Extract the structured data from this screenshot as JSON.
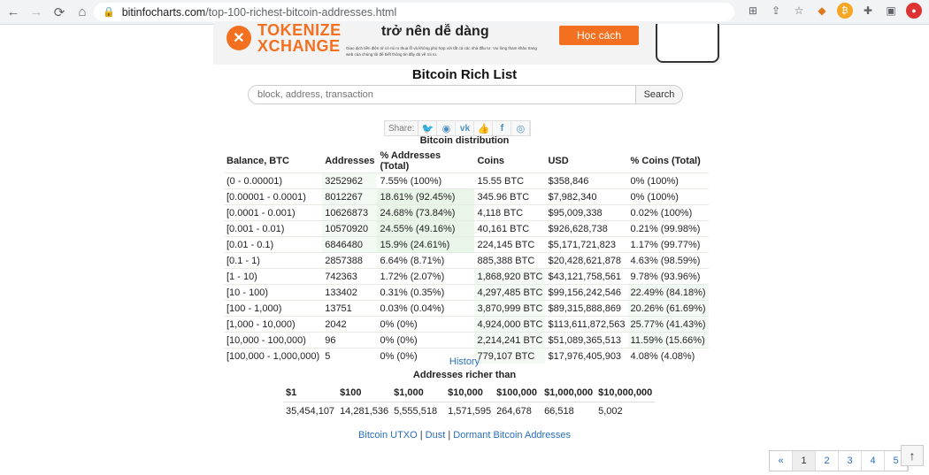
{
  "browser": {
    "url_host": "bitinfocharts.com",
    "url_path": "/top-100-richest-bitcoin-addresses.html"
  },
  "banner": {
    "logo_line1": "TOKENIZE",
    "logo_line2": "XCHANGE",
    "headline": "trở nên dễ dàng",
    "small_text": "Giao dịch tiền điện tử có rủi ro thua lỗ và không phù hợp với tất cả các nhà đầu tư. Vui lòng tham khảo trang web của chúng tôi để biết thông tin đầy đủ về rủi ro.",
    "cta": "Học cách"
  },
  "page_title": "Bitcoin Rich List",
  "search": {
    "placeholder": "block, address, transaction",
    "button": "Search"
  },
  "share": {
    "label": "Share:"
  },
  "distribution": {
    "title": "Bitcoin distribution",
    "headers": [
      "Balance, BTC",
      "Addresses",
      "% Addresses (Total)",
      "Coins",
      "USD",
      "% Coins (Total)"
    ],
    "rows": [
      [
        "(0 - 0.00001)",
        "3252962",
        "7.55% (100%)",
        "15.55 BTC",
        "$358,846",
        "0% (100%)"
      ],
      [
        "[0.00001 - 0.0001)",
        "8012267",
        "18.61% (92.45%)",
        "345.96 BTC",
        "$7,982,340",
        "0% (100%)"
      ],
      [
        "[0.0001 - 0.001)",
        "10626873",
        "24.68% (73.84%)",
        "4,118 BTC",
        "$95,009,338",
        "0.02% (100%)"
      ],
      [
        "[0.001 - 0.01)",
        "10570920",
        "24.55% (49.16%)",
        "40,161 BTC",
        "$926,628,738",
        "0.21% (99.98%)"
      ],
      [
        "[0.01 - 0.1)",
        "6846480",
        "15.9% (24.61%)",
        "224,145 BTC",
        "$5,171,721,823",
        "1.17% (99.77%)"
      ],
      [
        "[0.1 - 1)",
        "2857388",
        "6.64% (8.71%)",
        "885,388 BTC",
        "$20,428,621,878",
        "4.63% (98.59%)"
      ],
      [
        "[1 - 10)",
        "742363",
        "1.72% (2.07%)",
        "1,868,920 BTC",
        "$43,121,758,561",
        "9.78% (93.96%)"
      ],
      [
        "[10 - 100)",
        "133402",
        "0.31% (0.35%)",
        "4,297,485 BTC",
        "$99,156,242,546",
        "22.49% (84.18%)"
      ],
      [
        "[100 - 1,000)",
        "13751",
        "0.03% (0.04%)",
        "3,870,999 BTC",
        "$89,315,888,869",
        "20.26% (61.69%)"
      ],
      [
        "[1,000 - 10,000)",
        "2042",
        "0% (0%)",
        "4,924,000 BTC",
        "$113,611,872,563",
        "25.77% (41.43%)"
      ],
      [
        "[10,000 - 100,000)",
        "96",
        "0% (0%)",
        "2,214,241 BTC",
        "$51,089,365,513",
        "11.59% (15.66%)"
      ],
      [
        "[100,000 - 1,000,000)",
        "5",
        "0% (0%)",
        "779,107 BTC",
        "$17,976,405,903",
        "4.08% (4.08%)"
      ]
    ]
  },
  "history_link": "History",
  "richer": {
    "title": "Addresses richer than",
    "headers": [
      "$1",
      "$100",
      "$1,000",
      "$10,000",
      "$100,000",
      "$1,000,000",
      "$10,000,000"
    ],
    "values": [
      "35,454,107",
      "14,281,536",
      "5,555,518",
      "1,571,595",
      "264,678",
      "66,518",
      "5,002"
    ]
  },
  "footer": {
    "link1": "Bitcoin UTXO",
    "sep": "|",
    "link2": "Dust",
    "link3": "Dormant Bitcoin Addresses"
  },
  "pager": {
    "prev": "«",
    "pages": [
      "1",
      "2",
      "3",
      "4",
      "5"
    ]
  },
  "top_button": "↑"
}
